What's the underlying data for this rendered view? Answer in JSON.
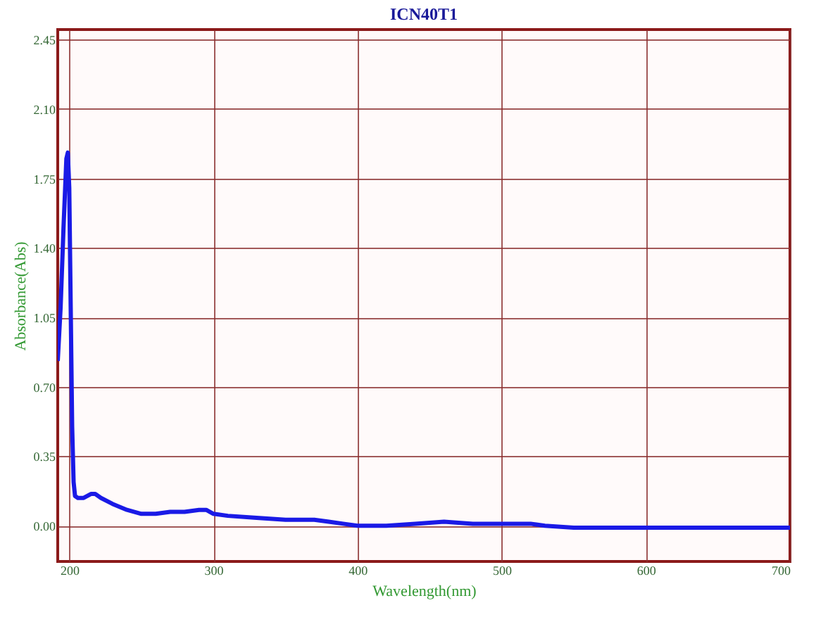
{
  "chart_data": {
    "type": "line",
    "title": "ICN40T1",
    "xlabel": "Wavelength(nm)",
    "ylabel": "Absorbance(Abs)",
    "x": [
      192,
      194,
      196,
      198,
      199,
      200,
      201,
      202,
      203,
      204,
      206,
      210,
      215,
      218,
      222,
      230,
      240,
      250,
      260,
      270,
      280,
      290,
      295,
      300,
      310,
      330,
      350,
      370,
      380,
      390,
      400,
      420,
      440,
      460,
      480,
      500,
      520,
      530,
      550,
      600,
      650,
      700
    ],
    "series": [
      {
        "color": "#1a1ae6",
        "values": [
          0.83,
          1.1,
          1.5,
          1.85,
          1.88,
          1.7,
          1.1,
          0.5,
          0.22,
          0.15,
          0.14,
          0.14,
          0.16,
          0.16,
          0.14,
          0.11,
          0.08,
          0.06,
          0.06,
          0.07,
          0.07,
          0.08,
          0.08,
          0.06,
          0.05,
          0.04,
          0.03,
          0.03,
          0.02,
          0.01,
          0.0,
          0.0,
          0.01,
          0.02,
          0.01,
          0.01,
          0.01,
          0.0,
          -0.01,
          -0.01,
          -0.01,
          -0.01
        ]
      }
    ],
    "xlim": [
      192,
      700
    ],
    "xticks": [
      200,
      300,
      400,
      500,
      600,
      700
    ],
    "ylim": [
      -0.18,
      2.5
    ],
    "yticks": [
      {
        "value": 0,
        "label": "0.00"
      },
      0.35,
      {
        "value": 0.7,
        "label": "0.70"
      },
      1.05,
      {
        "value": 1.4,
        "label": "1.40"
      },
      1.75,
      {
        "value": 2.1,
        "label": "2.10"
      },
      2.45
    ],
    "grid": true,
    "legend": false,
    "line_style": "solid",
    "marker": "none"
  }
}
